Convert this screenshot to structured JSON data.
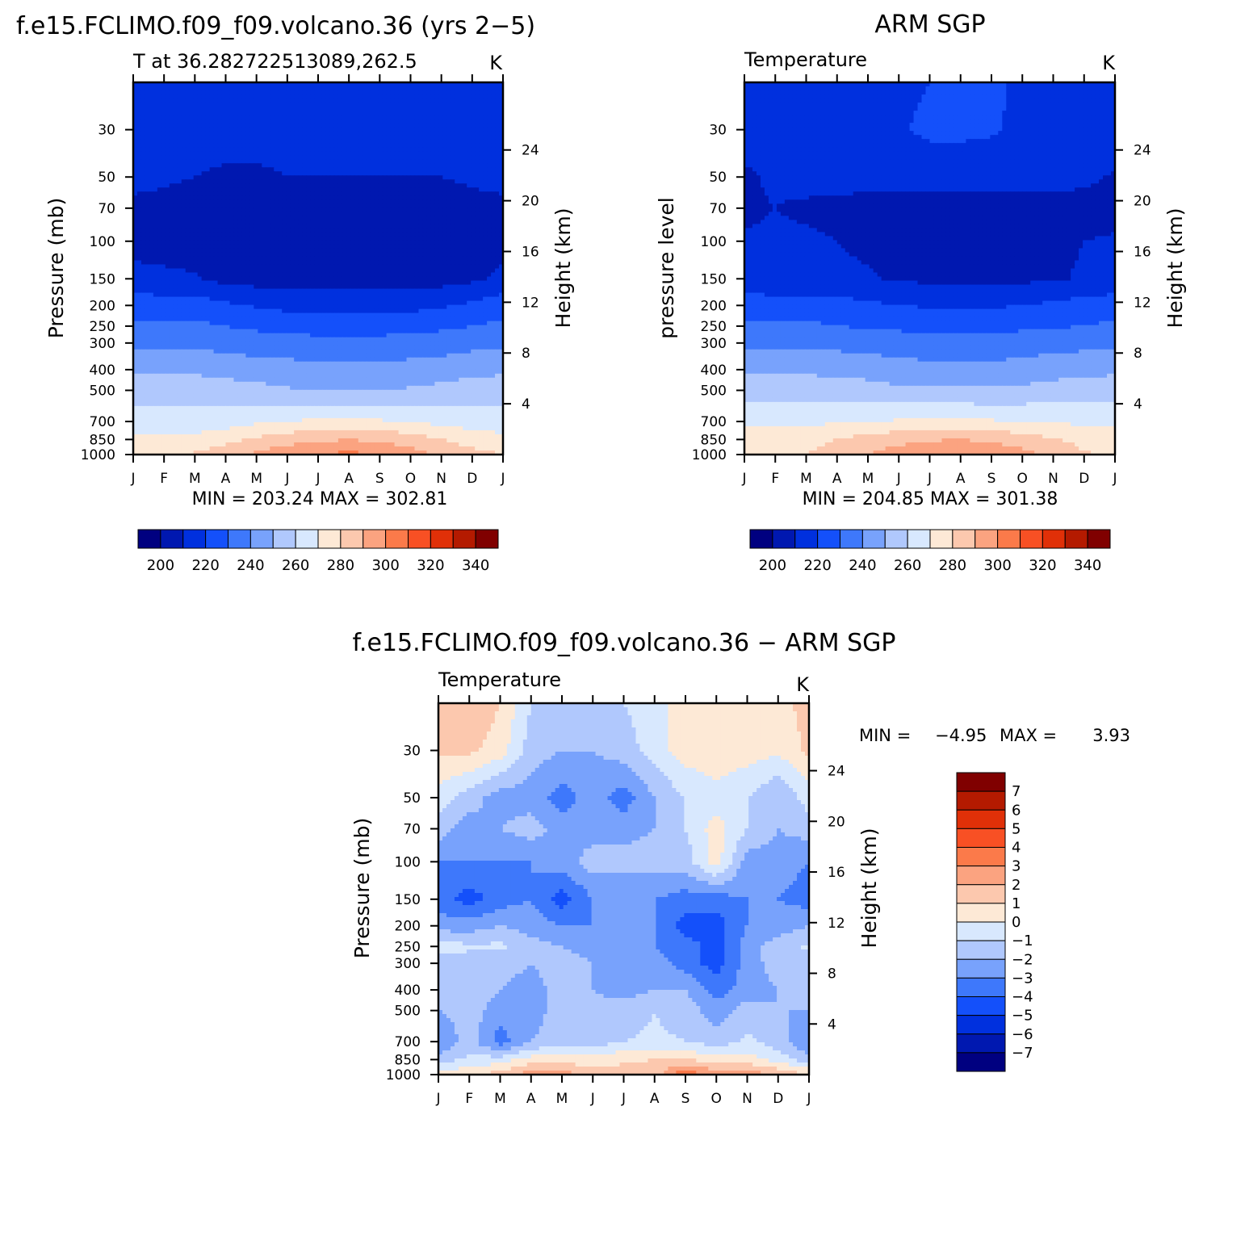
{
  "colors": {
    "abs_scale": [
      "#000080",
      "#0018b0",
      "#0030de",
      "#1450fa",
      "#3e78fb",
      "#78a2fc",
      "#b0c8fd",
      "#d8e8fe",
      "#fde9d6",
      "#fcc8ae",
      "#fba380",
      "#fb7a4a",
      "#f85024",
      "#e03008",
      "#b41a00",
      "#800000"
    ],
    "diff_scale": [
      "#000080",
      "#0018b0",
      "#0030de",
      "#1450fa",
      "#3e78fb",
      "#78a2fc",
      "#b0c8fd",
      "#d8e8fe",
      "#fde9d6",
      "#fcc8ae",
      "#fba380",
      "#fb7a4a",
      "#f85024",
      "#e03008",
      "#b41a00",
      "#800000"
    ]
  },
  "chart_data": [
    {
      "id": "model",
      "type": "heatmap",
      "title": "f.e15.FCLIMO.f09_f09.volcano.36 (yrs 2−5)",
      "subtitle_left": "T at 36.282722513089,262.5",
      "units": "K",
      "ylabel": "Pressure (mb)",
      "ylabel_right": "Height (km)",
      "x_ticks": [
        "J",
        "F",
        "M",
        "A",
        "M",
        "J",
        "J",
        "A",
        "S",
        "O",
        "N",
        "D",
        "J"
      ],
      "y_ticks": [
        30,
        50,
        70,
        100,
        150,
        200,
        250,
        300,
        400,
        500,
        700,
        850,
        1000
      ],
      "y_right_ticks": [
        24,
        20,
        16,
        12,
        8,
        4
      ],
      "ylim": [
        1000,
        18
      ],
      "y_scale": "log",
      "stats_label": "MIN = 203.24 MAX = 302.81",
      "min": 203.24,
      "max": 302.81,
      "colorbar_labels": [
        "200",
        "220",
        "240",
        "260",
        "280",
        "300",
        "320",
        "340"
      ],
      "colorbar_levels": [
        190,
        200,
        210,
        220,
        230,
        240,
        250,
        260,
        270,
        280,
        290,
        300,
        310,
        320,
        330,
        340,
        350
      ],
      "levels_hpa": [
        18,
        30,
        50,
        70,
        100,
        150,
        200,
        250,
        300,
        400,
        500,
        700,
        850,
        1000
      ],
      "values": [
        [
          215,
          215,
          215,
          215,
          215,
          215,
          215,
          217,
          217,
          217,
          215,
          215,
          215,
          215
        ],
        [
          216,
          216,
          216,
          215,
          215,
          215,
          216,
          217,
          217,
          217,
          216,
          216,
          216,
          216
        ],
        [
          214,
          212,
          210,
          208,
          208,
          210,
          210,
          210,
          210,
          210,
          210,
          212,
          214,
          214
        ],
        [
          207,
          206,
          205,
          204,
          204,
          204,
          205,
          205,
          205,
          205,
          205,
          206,
          207,
          207
        ],
        [
          208,
          206,
          205,
          204,
          203.24,
          203.24,
          203.5,
          204,
          204,
          204,
          204,
          205,
          207,
          208
        ],
        [
          212,
          212,
          211,
          207,
          206,
          205,
          205,
          206,
          206,
          206,
          206,
          208,
          212,
          212
        ],
        [
          226,
          225,
          225,
          222,
          219,
          217,
          217,
          217,
          217,
          217,
          219,
          222,
          226,
          226
        ],
        [
          232,
          232,
          232,
          230,
          228,
          227,
          226,
          226,
          226,
          227,
          228,
          230,
          232,
          232
        ],
        [
          238,
          238,
          238,
          236,
          235,
          234,
          233,
          233,
          233,
          234,
          235,
          237,
          238,
          238
        ],
        [
          248,
          248,
          248,
          246,
          245,
          244,
          243,
          243,
          243,
          244,
          245,
          247,
          248,
          248
        ],
        [
          256,
          256,
          256,
          255,
          253,
          251,
          250,
          250,
          250,
          251,
          253,
          255,
          256,
          256
        ],
        [
          264,
          264,
          264,
          265,
          268,
          270,
          272,
          272,
          271,
          270,
          267,
          265,
          264,
          264
        ],
        [
          272,
          272,
          273,
          277,
          282,
          286,
          288,
          290,
          288,
          285,
          280,
          276,
          273,
          272
        ],
        [
          278,
          279,
          281,
          286,
          292,
          297,
          300,
          302.81,
          299,
          294,
          288,
          283,
          280,
          278
        ]
      ]
    },
    {
      "id": "obs",
      "type": "heatmap",
      "title": "ARM SGP",
      "subtitle_left": "Temperature",
      "units": "K",
      "ylabel": "pressure level",
      "ylabel_right": "Height (km)",
      "x_ticks": [
        "J",
        "F",
        "M",
        "A",
        "M",
        "J",
        "J",
        "A",
        "S",
        "O",
        "N",
        "D",
        "J"
      ],
      "y_ticks": [
        30,
        50,
        70,
        100,
        150,
        200,
        250,
        300,
        400,
        500,
        700,
        850,
        1000
      ],
      "y_right_ticks": [
        24,
        20,
        16,
        12,
        8,
        4
      ],
      "ylim": [
        1000,
        18
      ],
      "y_scale": "log",
      "stats_label": "MIN = 204.85 MAX = 301.38",
      "min": 204.85,
      "max": 301.38,
      "colorbar_labels": [
        "200",
        "220",
        "240",
        "260",
        "280",
        "300",
        "320",
        "340"
      ],
      "colorbar_levels": [
        190,
        200,
        210,
        220,
        230,
        240,
        250,
        260,
        270,
        280,
        290,
        300,
        310,
        320,
        330,
        340,
        350
      ],
      "levels_hpa": [
        18,
        30,
        50,
        70,
        100,
        150,
        200,
        250,
        300,
        400,
        500,
        700,
        850,
        1000
      ],
      "values": [
        [
          215,
          215,
          215,
          215,
          216,
          218,
          220,
          222,
          222,
          218,
          215,
          215,
          215,
          215
        ],
        [
          216,
          216,
          216,
          216,
          217,
          219,
          222,
          222,
          221,
          218,
          216,
          216,
          216,
          216
        ],
        [
          208,
          212,
          214,
          214,
          214,
          214,
          214,
          214,
          214,
          214,
          214,
          212,
          209,
          208
        ],
        [
          208,
          210,
          208,
          207,
          206,
          206,
          206,
          206,
          206,
          206,
          206,
          206,
          207,
          208
        ],
        [
          211,
          212,
          212,
          210,
          208,
          207,
          207,
          207,
          207,
          207,
          208,
          210,
          211,
          211
        ],
        [
          212,
          212,
          212,
          212,
          211,
          209,
          208,
          208,
          208,
          208,
          209,
          211,
          212,
          212
        ],
        [
          226,
          225,
          225,
          224,
          222,
          220,
          219,
          219,
          219,
          220,
          222,
          224,
          226,
          226
        ],
        [
          232,
          232,
          232,
          230,
          229,
          228,
          227,
          227,
          227,
          228,
          229,
          230,
          232,
          232
        ],
        [
          238,
          238,
          238,
          237,
          236,
          235,
          234,
          234,
          234,
          235,
          236,
          237,
          238,
          238
        ],
        [
          248,
          248,
          248,
          247,
          246,
          244,
          243,
          243,
          243,
          244,
          246,
          247,
          248,
          248
        ],
        [
          256,
          256,
          256,
          255,
          254,
          252,
          251,
          251,
          251,
          252,
          254,
          255,
          256,
          256
        ],
        [
          268,
          268,
          268,
          269,
          270,
          271,
          272,
          272,
          271,
          270,
          269,
          268,
          268,
          268
        ],
        [
          274,
          274,
          276,
          280,
          284,
          287,
          289,
          290,
          288,
          285,
          281,
          277,
          274,
          274
        ],
        [
          276,
          277,
          280,
          285,
          290,
          295,
          298,
          301.38,
          298,
          293,
          287,
          281,
          278,
          276
        ]
      ]
    },
    {
      "id": "diff",
      "type": "heatmap",
      "title": "f.e15.FCLIMO.f09_f09.volcano.36 − ARM SGP",
      "subtitle_left": "Temperature",
      "units": "K",
      "ylabel": "Pressure (mb)",
      "ylabel_right": "Height (km)",
      "x_ticks": [
        "J",
        "F",
        "M",
        "A",
        "M",
        "J",
        "J",
        "A",
        "S",
        "O",
        "N",
        "D",
        "J"
      ],
      "y_ticks": [
        30,
        50,
        70,
        100,
        150,
        200,
        250,
        300,
        400,
        500,
        700,
        850,
        1000
      ],
      "y_right_ticks": [
        24,
        20,
        16,
        12,
        8,
        4
      ],
      "ylim": [
        1000,
        18
      ],
      "y_scale": "log",
      "stats_label_min": "MIN =",
      "stats_min": "−4.95",
      "stats_label_max": "MAX =",
      "stats_max": "3.93",
      "min": -4.95,
      "max": 3.93,
      "colorbar_labels": [
        "7",
        "6",
        "5",
        "4",
        "3",
        "2",
        "1",
        "0",
        "−1",
        "−2",
        "−3",
        "−4",
        "−5",
        "−6",
        "−7"
      ],
      "colorbar_levels": [
        -8,
        -7,
        -6,
        -5,
        -4,
        -3,
        -2,
        -1,
        0,
        1,
        2,
        3,
        4,
        5,
        6,
        7,
        8
      ],
      "levels_hpa": [
        18,
        30,
        50,
        70,
        100,
        150,
        200,
        250,
        300,
        400,
        500,
        700,
        850,
        1000
      ],
      "values": [
        [
          1.5,
          2.0,
          1.0,
          -1.0,
          -1.5,
          -1.5,
          -1.0,
          -0.5,
          0.5,
          0.5,
          0.8,
          0.5,
          1.5,
          1.5
        ],
        [
          1.2,
          1.2,
          0.5,
          -1.5,
          -2.0,
          -2.0,
          -1.5,
          -0.5,
          0.5,
          0.8,
          0.5,
          0.2,
          1.2,
          1.2
        ],
        [
          -0.5,
          -1.5,
          -2.5,
          -2.5,
          -3.5,
          -2.5,
          -3.5,
          -2.0,
          -1.0,
          -0.5,
          -1.0,
          -2.0,
          -0.5,
          -0.5
        ],
        [
          -1.5,
          -2.5,
          -2.0,
          -1.5,
          -2.5,
          -2.5,
          -2.5,
          -2.0,
          -1.0,
          0.5,
          -1.0,
          -2.0,
          -1.5,
          -1.5
        ],
        [
          -3.0,
          -3.0,
          -3.0,
          -3.0,
          -2.5,
          -1.5,
          -1.5,
          -1.5,
          -1.5,
          0.5,
          -2.5,
          -2.5,
          -3.0,
          -3.0
        ],
        [
          -3.5,
          -4.5,
          -3.5,
          -3.0,
          -4.5,
          -3.0,
          -3.0,
          -3.0,
          -3.5,
          -3.5,
          -3.0,
          -3.0,
          -3.5,
          -3.5
        ],
        [
          -2.5,
          -2.5,
          -2.0,
          -2.5,
          -3.0,
          -3.0,
          -3.0,
          -3.0,
          -4.5,
          -4.5,
          -3.0,
          -2.5,
          -2.0,
          -2.5
        ],
        [
          -0.5,
          -0.8,
          -0.8,
          -1.5,
          -2.0,
          -2.5,
          -3.0,
          -3.0,
          -3.5,
          -4.5,
          -2.5,
          -1.5,
          -0.8,
          -0.5
        ],
        [
          -1.5,
          -1.5,
          -1.5,
          -2.0,
          -1.5,
          -2.0,
          -2.5,
          -2.5,
          -3.5,
          -4.5,
          -2.5,
          -1.5,
          -1.5,
          -1.5
        ],
        [
          -2.0,
          -1.5,
          -2.0,
          -2.5,
          -1.5,
          -2.0,
          -2.5,
          -2.0,
          -2.0,
          -3.5,
          -2.5,
          -2.0,
          -1.5,
          -2.0
        ],
        [
          -2.0,
          -1.5,
          -2.5,
          -2.5,
          -1.5,
          -1.5,
          -1.5,
          -1.0,
          -1.5,
          -2.5,
          -1.5,
          -2.0,
          -2.0,
          -2.0
        ],
        [
          -3.0,
          -1.5,
          -3.5,
          -2.0,
          -1.5,
          -1.5,
          -1.0,
          -0.8,
          -1.0,
          -1.5,
          -0.8,
          -1.5,
          -3.0,
          -3.0
        ],
        [
          -1.5,
          -0.8,
          -0.5,
          0.5,
          0.5,
          0.5,
          0.8,
          1.0,
          1.0,
          0.5,
          0.5,
          -0.5,
          -1.5,
          -1.5
        ],
        [
          0.5,
          0.8,
          1.5,
          2.5,
          2.5,
          1.5,
          1.5,
          1.5,
          3.93,
          2.5,
          2.5,
          2.0,
          1.0,
          0.5
        ]
      ]
    }
  ]
}
